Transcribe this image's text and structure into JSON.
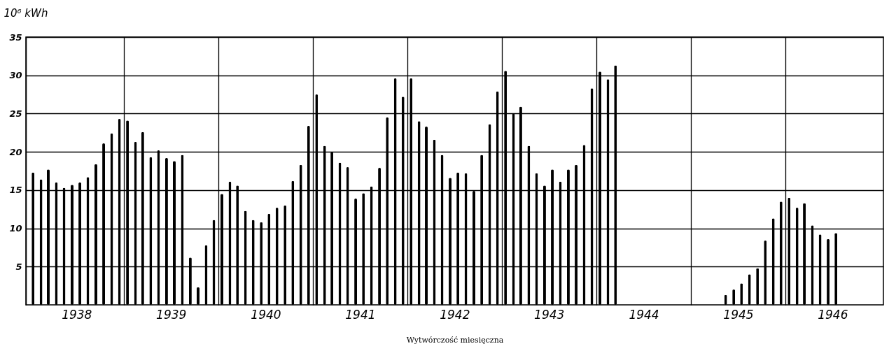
{
  "chart_data": {
    "type": "bar",
    "ylabel": "10⁶ kWh",
    "xlabel": "Wytwórczość miesięczna",
    "color": "#000000",
    "x": [
      "1938-01-15",
      "1938-02-15",
      "1938-03-15",
      "1938-04-15",
      "1938-05-15",
      "1938-06-15",
      "1938-07-15",
      "1938-08-15",
      "1938-09-15",
      "1938-10-15",
      "1938-11-15",
      "1938-12-15",
      "1939-01-15",
      "1939-02-15",
      "1939-03-15",
      "1939-04-15",
      "1939-05-15",
      "1939-06-15",
      "1939-07-15",
      "1939-08-15",
      "1939-09-15",
      "1939-10-15",
      "1939-11-15",
      "1939-12-15",
      "1940-01-15",
      "1940-02-15",
      "1940-03-15",
      "1940-04-15",
      "1940-05-15",
      "1940-06-15",
      "1940-07-15",
      "1940-08-15",
      "1940-09-15",
      "1940-10-15",
      "1940-11-15",
      "1940-12-15",
      "1941-01-15",
      "1941-02-15",
      "1941-03-15",
      "1941-04-15",
      "1941-05-15",
      "1941-06-15",
      "1941-07-15",
      "1941-08-15",
      "1941-09-15",
      "1941-10-15",
      "1941-11-15",
      "1941-12-15",
      "1942-01-15",
      "1942-02-15",
      "1942-03-15",
      "1942-04-15",
      "1942-05-15",
      "1942-06-15",
      "1942-07-15",
      "1942-08-15",
      "1942-09-15",
      "1942-10-15",
      "1942-11-15",
      "1942-12-15",
      "1943-01-15",
      "1943-02-15",
      "1943-03-15",
      "1943-04-15",
      "1943-05-15",
      "1943-06-15",
      "1943-07-15",
      "1943-08-15",
      "1943-09-15",
      "1943-10-15",
      "1943-11-15",
      "1943-12-15",
      "1944-01-15",
      "1944-02-15",
      "1944-03-15",
      "1945-05-15",
      "1945-06-15",
      "1945-07-15",
      "1945-08-15",
      "1945-09-15",
      "1945-10-15",
      "1945-11-15",
      "1945-12-15",
      "1946-01-15",
      "1946-02-15",
      "1946-03-15",
      "1946-04-15",
      "1946-05-15",
      "1946-06-15",
      "1946-07-15"
    ],
    "values": [
      17.3,
      16.4,
      17.7,
      16.0,
      15.3,
      15.7,
      16.0,
      16.7,
      18.4,
      21.1,
      22.4,
      24.3,
      24.1,
      21.3,
      22.6,
      19.3,
      20.2,
      19.2,
      18.8,
      19.6,
      6.2,
      2.3,
      7.8,
      11.1,
      14.5,
      16.1,
      15.6,
      12.3,
      11.1,
      10.8,
      11.9,
      12.7,
      13.0,
      16.2,
      18.3,
      23.4,
      27.5,
      20.8,
      20.0,
      18.6,
      18.0,
      13.9,
      14.6,
      15.5,
      17.9,
      24.5,
      29.6,
      27.2,
      29.6,
      24.0,
      23.3,
      21.6,
      19.6,
      16.6,
      17.3,
      17.2,
      14.9,
      19.6,
      23.6,
      27.9,
      30.6,
      25.0,
      25.9,
      20.8,
      17.2,
      15.6,
      17.7,
      16.1,
      17.7,
      18.3,
      20.9,
      28.3,
      30.5,
      29.5,
      31.3,
      1.3,
      2.0,
      2.8,
      4.0,
      4.8,
      8.4,
      11.3,
      13.5,
      14.0,
      12.7,
      13.3,
      10.4,
      9.2,
      8.6,
      9.4
    ],
    "xlim": [
      "1938-01-01",
      "1947-01-01"
    ],
    "xticks": [
      {
        "value": "1938-07-02",
        "label": "1938"
      },
      {
        "value": "1939-01-01",
        "label": null
      },
      {
        "value": "1939-07-02",
        "label": "1939"
      },
      {
        "value": "1940-01-01",
        "label": null
      },
      {
        "value": "1940-07-02",
        "label": "1940"
      },
      {
        "value": "1941-01-01",
        "label": null
      },
      {
        "value": "1941-07-02",
        "label": "1941"
      },
      {
        "value": "1942-01-01",
        "label": null
      },
      {
        "value": "1942-07-02",
        "label": "1942"
      },
      {
        "value": "1943-01-01",
        "label": null
      },
      {
        "value": "1943-07-02",
        "label": "1943"
      },
      {
        "value": "1944-01-01",
        "label": null
      },
      {
        "value": "1944-07-02",
        "label": "1944"
      },
      {
        "value": "1945-01-01",
        "label": null
      },
      {
        "value": "1945-07-02",
        "label": "1945"
      },
      {
        "value": "1946-01-01",
        "label": null
      },
      {
        "value": "1946-07-02",
        "label": "1946"
      }
    ],
    "ylim": [
      0,
      35
    ],
    "yticks": [
      5,
      10,
      15,
      20,
      25,
      30,
      35
    ],
    "grid": true
  }
}
